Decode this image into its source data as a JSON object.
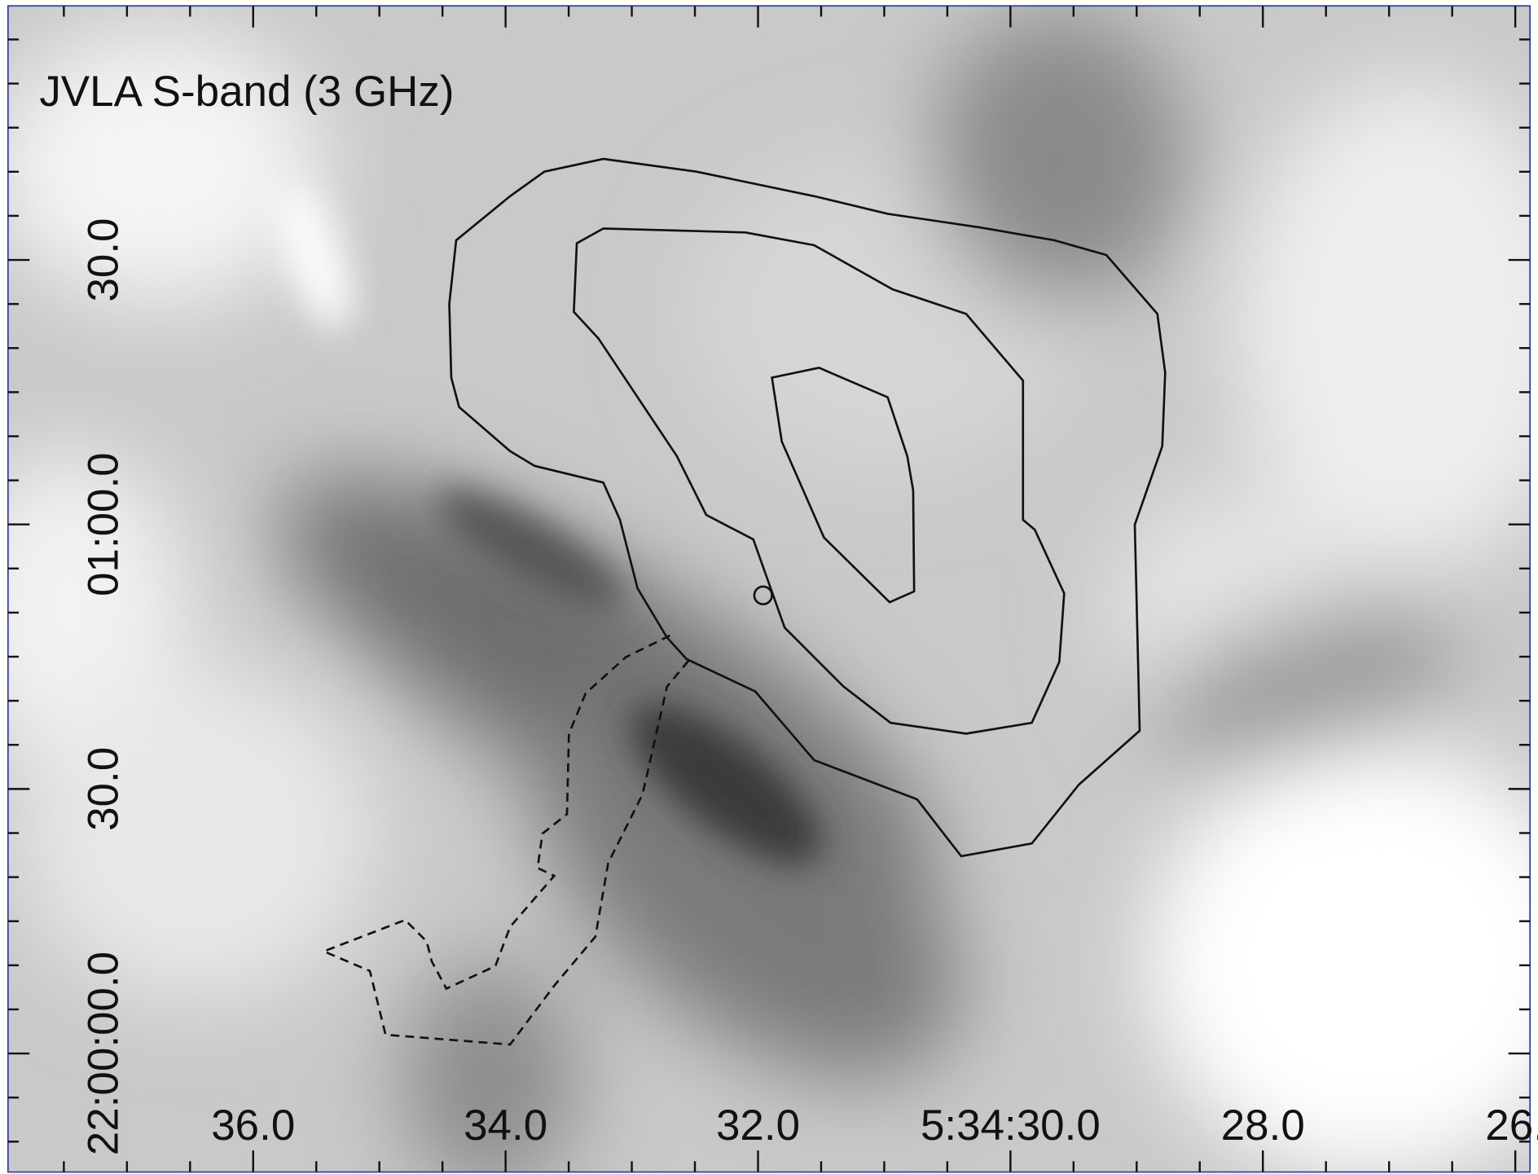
{
  "panel": {
    "title": "JVLA S-band (3 GHz)",
    "x_axis": {
      "tick_labels": [
        "36.0",
        "34.0",
        "32.0",
        "5:34:30.0",
        "28.0",
        "26."
      ]
    },
    "y_axis": {
      "tick_labels": [
        "30.0",
        "01:00.0",
        "30.0",
        "22:00:00.0"
      ]
    }
  }
}
